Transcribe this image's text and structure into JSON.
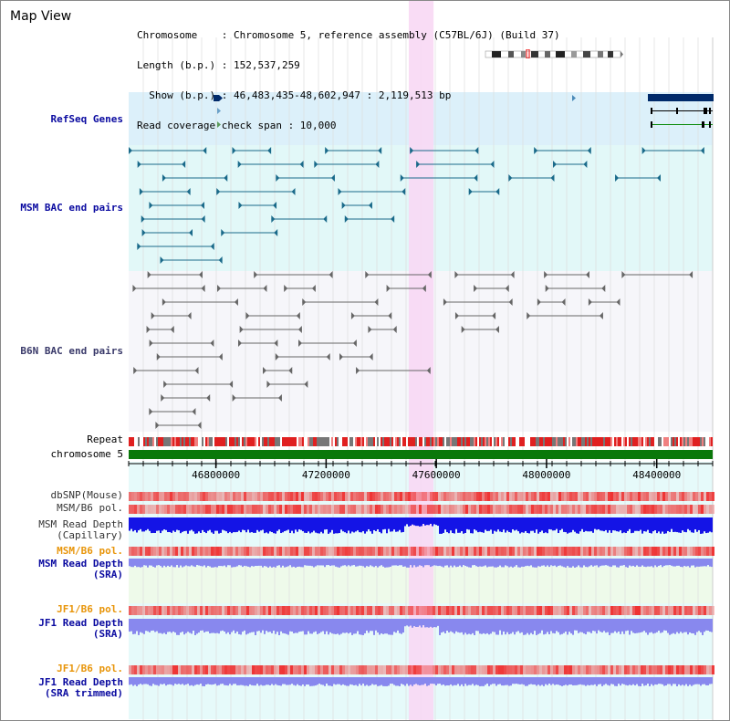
{
  "app": {
    "title": "Map View"
  },
  "info": {
    "chromosome_row": "Chromosome    : Chromosome 5, reference assembly (C57BL/6J) (Build 37)",
    "length_row": "Length (b.p.) : 152,537,259",
    "show_row": "  Show (b.p.) : 46,483,435-48,602,947 : 2,119,513 bp",
    "coverage_row": "Read coverage check span : 10,000"
  },
  "tracks": {
    "refseq": "RefSeq Genes",
    "msm_bac": "MSM BAC end pairs",
    "b6n_bac": "B6N BAC end pairs",
    "repeat": "Repeat",
    "chromosome": "chromosome 5",
    "dbsnp": "dbSNP(Mouse)",
    "msm_b6_pol_1": "MSM/B6 pol.",
    "msm_depth_cap_1": "MSM Read Depth",
    "msm_depth_cap_2": "(Capillary)",
    "msm_b6_pol_2": "MSM/B6 pol.",
    "msm_depth_sra_1": "MSM Read Depth",
    "msm_depth_sra_2": "(SRA)",
    "jf1_b6_pol_1": "JF1/B6 pol.",
    "jf1_depth_sra_1": "JF1 Read Depth",
    "jf1_depth_sra_2": "(SRA)",
    "jf1_b6_pol_2": "JF1/B6 pol.",
    "jf1_depth_trim_1": "JF1 Read Depth",
    "jf1_depth_trim_2": "(SRA trimmed)"
  },
  "axis": {
    "ticks": [
      "46800000",
      "47200000",
      "47600000",
      "48000000",
      "48400000"
    ],
    "tick_values": [
      46800000,
      47200000,
      47600000,
      48000000,
      48400000
    ],
    "range": [
      46483435,
      48602947
    ]
  },
  "highlight": {
    "start": 47500000,
    "end": 47590000
  },
  "colors": {
    "refseq_bg": "#dcf0fa",
    "msm_bg": "#e2f8f8",
    "b6n_bg": "#f6f6fa",
    "highlight": "#f8d8f4",
    "chromosome": "#0a780a",
    "gene": "#002a6a",
    "msm_pair": "#1a6a8a",
    "b6n_pair": "#666666",
    "depth_capillary": "#1414e6",
    "depth_sra": "#8888ee",
    "pol": "#ee3333"
  }
}
